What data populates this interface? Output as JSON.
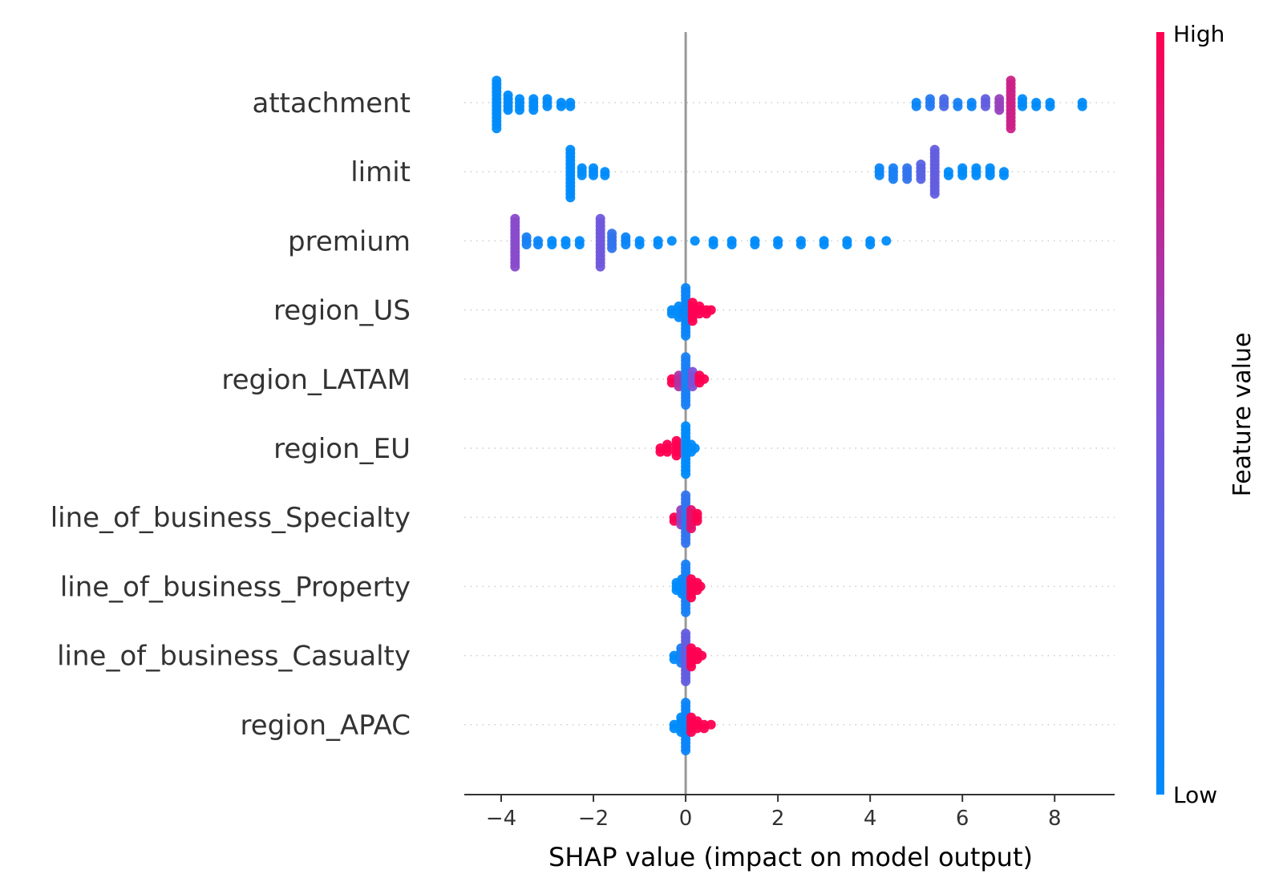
{
  "chart_data": {
    "type": "scatter",
    "subtype": "shap-beeswarm",
    "title": "",
    "xlabel": "SHAP value (impact on model output)",
    "xlim": [
      -4.8,
      9.3
    ],
    "xticks": [
      -4,
      -2,
      0,
      2,
      4,
      6,
      8
    ],
    "xtick_labels": [
      "−4",
      "−2",
      "0",
      "2",
      "4",
      "6",
      "8"
    ],
    "zero_line": true,
    "colorbar": {
      "title": "Feature value",
      "high_label": "High",
      "low_label": "Low",
      "low_color": "#008bfb",
      "mid_color": "#7c52d8",
      "high_color": "#ff0052"
    },
    "features": [
      {
        "name": "attachment",
        "points": [
          {
            "x": -4.1,
            "c": 0.0,
            "n": 14
          },
          {
            "x": -3.85,
            "c": 0.0,
            "n": 5
          },
          {
            "x": -3.6,
            "c": 0.0,
            "n": 4
          },
          {
            "x": -3.3,
            "c": 0.0,
            "n": 4
          },
          {
            "x": -3.0,
            "c": 0.0,
            "n": 3
          },
          {
            "x": -2.7,
            "c": 0.0,
            "n": 2
          },
          {
            "x": -2.5,
            "c": 0.0,
            "n": 2
          },
          {
            "x": 5.0,
            "c": 0.05,
            "n": 2
          },
          {
            "x": 5.3,
            "c": 0.15,
            "n": 3
          },
          {
            "x": 5.6,
            "c": 0.3,
            "n": 3
          },
          {
            "x": 5.9,
            "c": 0.1,
            "n": 2
          },
          {
            "x": 6.2,
            "c": 0.05,
            "n": 2
          },
          {
            "x": 6.5,
            "c": 0.4,
            "n": 3
          },
          {
            "x": 6.8,
            "c": 0.6,
            "n": 4
          },
          {
            "x": 7.05,
            "c": 0.8,
            "n": 14
          },
          {
            "x": 7.3,
            "c": 0.0,
            "n": 3
          },
          {
            "x": 7.6,
            "c": 0.0,
            "n": 2
          },
          {
            "x": 7.9,
            "c": 0.0,
            "n": 2
          },
          {
            "x": 8.6,
            "c": 0.0,
            "n": 2
          }
        ]
      },
      {
        "name": "limit",
        "points": [
          {
            "x": -2.5,
            "c": 0.0,
            "n": 14
          },
          {
            "x": -2.25,
            "c": 0.0,
            "n": 3
          },
          {
            "x": -2.0,
            "c": 0.0,
            "n": 3
          },
          {
            "x": -1.75,
            "c": 0.0,
            "n": 2
          },
          {
            "x": 4.2,
            "c": 0.05,
            "n": 3
          },
          {
            "x": 4.5,
            "c": 0.1,
            "n": 4
          },
          {
            "x": 4.8,
            "c": 0.2,
            "n": 4
          },
          {
            "x": 5.1,
            "c": 0.35,
            "n": 5
          },
          {
            "x": 5.4,
            "c": 0.4,
            "n": 13
          },
          {
            "x": 5.7,
            "c": 0.0,
            "n": 2
          },
          {
            "x": 6.0,
            "c": 0.0,
            "n": 3
          },
          {
            "x": 6.3,
            "c": 0.0,
            "n": 3
          },
          {
            "x": 6.6,
            "c": 0.0,
            "n": 3
          },
          {
            "x": 6.9,
            "c": 0.0,
            "n": 2
          }
        ]
      },
      {
        "name": "premium",
        "points": [
          {
            "x": -3.7,
            "c": 0.55,
            "n": 14
          },
          {
            "x": -3.45,
            "c": 0.1,
            "n": 3
          },
          {
            "x": -3.2,
            "c": 0.05,
            "n": 2
          },
          {
            "x": -2.9,
            "c": 0.0,
            "n": 2
          },
          {
            "x": -2.6,
            "c": 0.0,
            "n": 2
          },
          {
            "x": -2.3,
            "c": 0.0,
            "n": 2
          },
          {
            "x": -1.85,
            "c": 0.45,
            "n": 14
          },
          {
            "x": -1.6,
            "c": 0.2,
            "n": 5
          },
          {
            "x": -1.3,
            "c": 0.05,
            "n": 3
          },
          {
            "x": -1.0,
            "c": 0.0,
            "n": 2
          },
          {
            "x": -0.6,
            "c": 0.0,
            "n": 2
          },
          {
            "x": -0.3,
            "c": 0.0,
            "n": 1
          },
          {
            "x": 0.2,
            "c": 0.0,
            "n": 1
          },
          {
            "x": 0.6,
            "c": 0.0,
            "n": 2
          },
          {
            "x": 1.0,
            "c": 0.0,
            "n": 2
          },
          {
            "x": 1.5,
            "c": 0.0,
            "n": 2
          },
          {
            "x": 2.0,
            "c": 0.0,
            "n": 2
          },
          {
            "x": 2.5,
            "c": 0.0,
            "n": 2
          },
          {
            "x": 3.0,
            "c": 0.0,
            "n": 2
          },
          {
            "x": 3.5,
            "c": 0.0,
            "n": 2
          },
          {
            "x": 4.0,
            "c": 0.0,
            "n": 2
          },
          {
            "x": 4.35,
            "c": 0.0,
            "n": 1
          }
        ]
      },
      {
        "name": "region_US",
        "points": [
          {
            "x": -0.3,
            "c": 0.0,
            "n": 2
          },
          {
            "x": -0.15,
            "c": 0.0,
            "n": 4
          },
          {
            "x": 0.0,
            "c": 0.05,
            "n": 14
          },
          {
            "x": 0.15,
            "c": 1.0,
            "n": 6
          },
          {
            "x": 0.3,
            "c": 1.0,
            "n": 3
          },
          {
            "x": 0.45,
            "c": 1.0,
            "n": 2
          },
          {
            "x": 0.55,
            "c": 1.0,
            "n": 1
          }
        ]
      },
      {
        "name": "region_LATAM",
        "points": [
          {
            "x": -0.3,
            "c": 1.0,
            "n": 2
          },
          {
            "x": -0.15,
            "c": 0.7,
            "n": 4
          },
          {
            "x": 0.0,
            "c": 0.1,
            "n": 14
          },
          {
            "x": 0.15,
            "c": 0.5,
            "n": 5
          },
          {
            "x": 0.3,
            "c": 1.0,
            "n": 3
          },
          {
            "x": 0.4,
            "c": 1.0,
            "n": 1
          }
        ]
      },
      {
        "name": "region_EU",
        "points": [
          {
            "x": -0.55,
            "c": 1.0,
            "n": 2
          },
          {
            "x": -0.4,
            "c": 1.0,
            "n": 3
          },
          {
            "x": -0.2,
            "c": 1.0,
            "n": 5
          },
          {
            "x": 0.0,
            "c": 0.0,
            "n": 14
          },
          {
            "x": 0.12,
            "c": 0.0,
            "n": 3
          },
          {
            "x": 0.2,
            "c": 0.0,
            "n": 1
          }
        ]
      },
      {
        "name": "line_of_business_Specialty",
        "points": [
          {
            "x": -0.25,
            "c": 1.0,
            "n": 2
          },
          {
            "x": -0.1,
            "c": 0.6,
            "n": 5
          },
          {
            "x": 0.0,
            "c": 0.2,
            "n": 14
          },
          {
            "x": 0.12,
            "c": 0.9,
            "n": 6
          },
          {
            "x": 0.25,
            "c": 1.0,
            "n": 3
          }
        ]
      },
      {
        "name": "line_of_business_Property",
        "points": [
          {
            "x": -0.2,
            "c": 0.0,
            "n": 3
          },
          {
            "x": -0.08,
            "c": 0.0,
            "n": 5
          },
          {
            "x": 0.0,
            "c": 0.1,
            "n": 14
          },
          {
            "x": 0.12,
            "c": 1.0,
            "n": 6
          },
          {
            "x": 0.25,
            "c": 1.0,
            "n": 3
          },
          {
            "x": 0.32,
            "c": 1.0,
            "n": 1
          }
        ]
      },
      {
        "name": "line_of_business_Casualty",
        "points": [
          {
            "x": -0.25,
            "c": 0.0,
            "n": 2
          },
          {
            "x": -0.1,
            "c": 0.1,
            "n": 5
          },
          {
            "x": 0.0,
            "c": 0.4,
            "n": 14
          },
          {
            "x": 0.12,
            "c": 1.0,
            "n": 6
          },
          {
            "x": 0.25,
            "c": 1.0,
            "n": 3
          },
          {
            "x": 0.35,
            "c": 1.0,
            "n": 1
          }
        ]
      },
      {
        "name": "region_APAC",
        "points": [
          {
            "x": -0.25,
            "c": 0.0,
            "n": 2
          },
          {
            "x": -0.1,
            "c": 0.0,
            "n": 5
          },
          {
            "x": 0.0,
            "c": 0.05,
            "n": 14
          },
          {
            "x": 0.12,
            "c": 1.0,
            "n": 5
          },
          {
            "x": 0.25,
            "c": 1.0,
            "n": 3
          },
          {
            "x": 0.4,
            "c": 1.0,
            "n": 2
          },
          {
            "x": 0.55,
            "c": 1.0,
            "n": 1
          }
        ]
      }
    ]
  }
}
